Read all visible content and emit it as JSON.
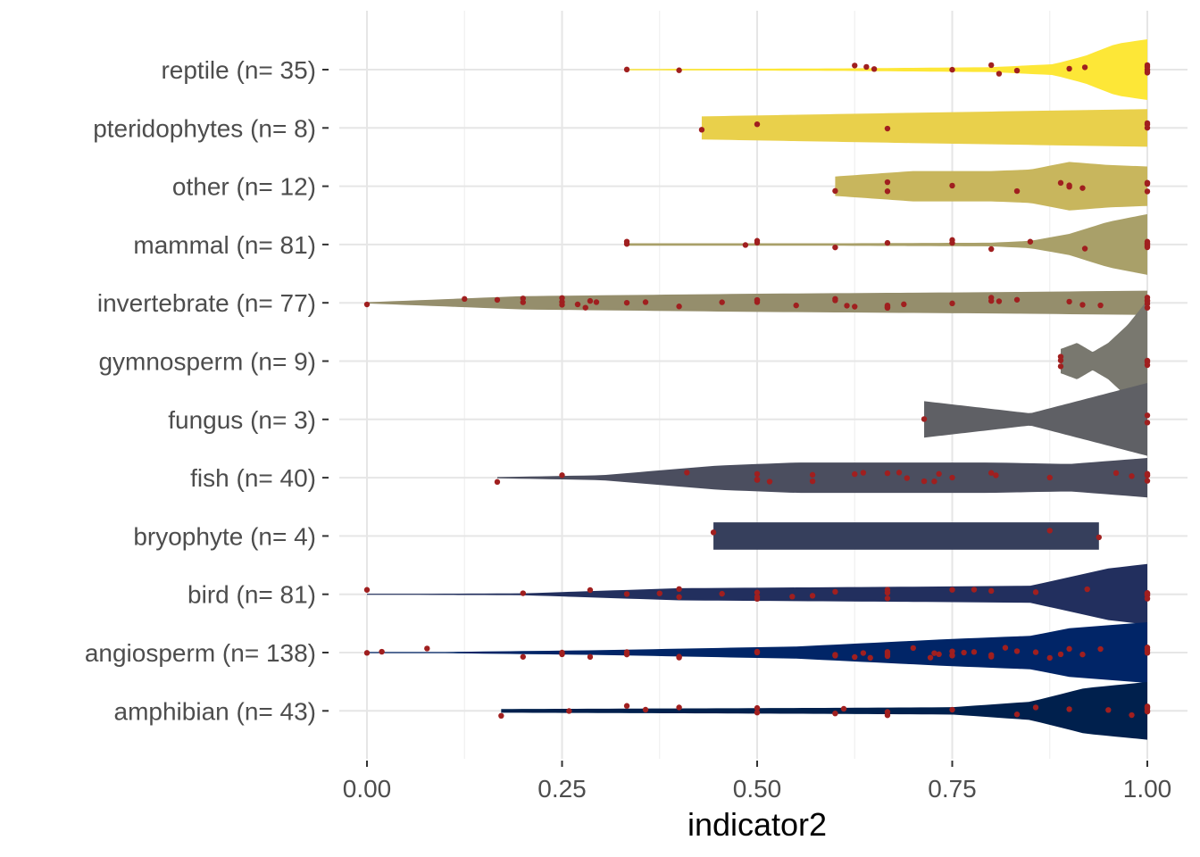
{
  "chart_data": {
    "type": "violin",
    "title": "",
    "xlabel": "indicator2",
    "ylabel": "",
    "xlim": [
      -0.07,
      1.04
    ],
    "x_ticks": [
      0.0,
      0.25,
      0.5,
      0.75,
      1.0
    ],
    "x_tick_labels": [
      "0.00",
      "0.25",
      "0.50",
      "0.75",
      "1.00"
    ],
    "grid": true,
    "legend": "none",
    "point_color": "#a01f1f",
    "categories": [
      {
        "label": "reptile (n= 35)",
        "color": "#fde737",
        "range": [
          0.333,
          1.0
        ],
        "profile": [
          [
            0.333,
            0.02
          ],
          [
            0.6,
            0.04
          ],
          [
            0.8,
            0.08
          ],
          [
            0.88,
            0.18
          ],
          [
            0.92,
            0.45
          ],
          [
            0.96,
            0.85
          ],
          [
            1.0,
            1.0
          ]
        ],
        "points": [
          0.333,
          0.4,
          0.625,
          0.64,
          0.65,
          0.75,
          0.8,
          0.81,
          0.833,
          0.9,
          0.92,
          1.0,
          1.0,
          1.0,
          1.0,
          1.0
        ]
      },
      {
        "label": "pteridophytes (n= 8)",
        "color": "#e9d04b",
        "range": [
          0.429,
          1.0
        ],
        "profile": [
          [
            0.429,
            0.38
          ],
          [
            0.7,
            0.5
          ],
          [
            1.0,
            0.62
          ]
        ],
        "points": [
          0.429,
          0.5,
          0.667,
          1.0,
          1.0,
          1.0
        ]
      },
      {
        "label": "other (n= 12)",
        "color": "#c8b65d",
        "range": [
          0.6,
          1.0
        ],
        "profile": [
          [
            0.6,
            0.32
          ],
          [
            0.7,
            0.5
          ],
          [
            0.8,
            0.5
          ],
          [
            0.85,
            0.55
          ],
          [
            0.9,
            0.8
          ],
          [
            0.95,
            0.7
          ],
          [
            1.0,
            0.65
          ]
        ],
        "points": [
          0.6,
          0.667,
          0.667,
          0.75,
          0.833,
          0.889,
          0.9,
          0.9,
          0.917,
          1.0,
          1.0,
          1.0
        ]
      },
      {
        "label": "mammal (n= 81)",
        "color": "#a9a069",
        "range": [
          0.333,
          1.0
        ],
        "profile": [
          [
            0.333,
            0.04
          ],
          [
            0.6,
            0.04
          ],
          [
            0.8,
            0.06
          ],
          [
            0.85,
            0.12
          ],
          [
            0.9,
            0.35
          ],
          [
            0.95,
            0.75
          ],
          [
            1.0,
            1.0
          ]
        ],
        "points": [
          0.333,
          0.333,
          0.485,
          0.5,
          0.5,
          0.6,
          0.667,
          0.75,
          0.75,
          0.8,
          0.85,
          0.92,
          1.0,
          1.0,
          1.0,
          1.0,
          1.0
        ]
      },
      {
        "label": "invertebrate (n= 77)",
        "color": "#958e6c",
        "range": [
          0.0,
          1.0
        ],
        "profile": [
          [
            0.0,
            0.02
          ],
          [
            0.2,
            0.22
          ],
          [
            0.5,
            0.3
          ],
          [
            0.8,
            0.35
          ],
          [
            1.0,
            0.4
          ]
        ],
        "points": [
          0.0,
          0.125,
          0.167,
          0.2,
          0.2,
          0.25,
          0.25,
          0.25,
          0.27,
          0.28,
          0.286,
          0.294,
          0.333,
          0.357,
          0.4,
          0.455,
          0.5,
          0.5,
          0.5,
          0.55,
          0.6,
          0.6,
          0.615,
          0.625,
          0.667,
          0.667,
          0.667,
          0.667,
          0.688,
          0.75,
          0.8,
          0.8,
          0.81,
          0.833,
          0.9,
          0.917,
          0.94,
          1.0,
          1.0,
          1.0,
          1.0,
          1.0
        ]
      },
      {
        "label": "gymnosperm (n= 9)",
        "color": "#79786f",
        "range": [
          0.889,
          1.0
        ],
        "profile": [
          [
            0.889,
            0.4
          ],
          [
            0.91,
            0.6
          ],
          [
            0.93,
            0.3
          ],
          [
            0.95,
            0.6
          ],
          [
            0.975,
            1.2
          ],
          [
            1.0,
            2.0
          ]
        ],
        "points": [
          0.889,
          0.889,
          0.889,
          1.0,
          1.0,
          1.0
        ]
      },
      {
        "label": "fungus (n= 3)",
        "color": "#5f6065",
        "range": [
          0.714,
          1.0
        ],
        "profile": [
          [
            0.714,
            0.6
          ],
          [
            0.85,
            0.2
          ],
          [
            1.0,
            1.2
          ]
        ],
        "points": [
          0.714,
          1.0,
          1.0
        ]
      },
      {
        "label": "fish (n= 40)",
        "color": "#4b4e5f",
        "range": [
          0.167,
          1.0
        ],
        "profile": [
          [
            0.167,
            0.02
          ],
          [
            0.3,
            0.08
          ],
          [
            0.45,
            0.4
          ],
          [
            0.55,
            0.5
          ],
          [
            0.8,
            0.5
          ],
          [
            0.9,
            0.45
          ],
          [
            1.0,
            0.65
          ]
        ],
        "points": [
          0.167,
          0.25,
          0.41,
          0.5,
          0.5,
          0.5,
          0.5,
          0.516,
          0.571,
          0.571,
          0.625,
          0.636,
          0.667,
          0.682,
          0.692,
          0.714,
          0.727,
          0.733,
          0.75,
          0.8,
          0.806,
          0.875,
          0.96,
          0.98,
          1.0,
          1.0,
          1.0,
          1.0
        ]
      },
      {
        "label": "bryophyte (n= 4)",
        "color": "#363f5c",
        "range": [
          0.444,
          0.938
        ],
        "profile": [
          [
            0.444,
            0.45
          ],
          [
            0.938,
            0.45
          ]
        ],
        "points": [
          0.444,
          0.875,
          0.938
        ]
      },
      {
        "label": "bird (n= 81)",
        "color": "#222f5e",
        "range": [
          0.0,
          1.0
        ],
        "profile": [
          [
            0.0,
            0.01
          ],
          [
            0.2,
            0.03
          ],
          [
            0.4,
            0.2
          ],
          [
            0.7,
            0.25
          ],
          [
            0.85,
            0.28
          ],
          [
            0.95,
            0.85
          ],
          [
            1.0,
            1.0
          ]
        ],
        "points": [
          0.0,
          0.2,
          0.286,
          0.333,
          0.375,
          0.4,
          0.4,
          0.455,
          0.5,
          0.5,
          0.5,
          0.545,
          0.571,
          0.6,
          0.667,
          0.667,
          0.667,
          0.75,
          0.778,
          0.8,
          0.857,
          0.923,
          1.0,
          1.0,
          1.0,
          1.0,
          1.0
        ]
      },
      {
        "label": "angiosperm (n= 138)",
        "color": "#012567",
        "range": [
          0.0,
          1.0
        ],
        "profile": [
          [
            0.0,
            0.01
          ],
          [
            0.1,
            0.02
          ],
          [
            0.3,
            0.08
          ],
          [
            0.55,
            0.2
          ],
          [
            0.75,
            0.45
          ],
          [
            0.85,
            0.55
          ],
          [
            0.9,
            0.8
          ],
          [
            1.0,
            1.0
          ]
        ],
        "points": [
          0.0,
          0.019,
          0.077,
          0.2,
          0.25,
          0.25,
          0.286,
          0.333,
          0.333,
          0.4,
          0.4,
          0.5,
          0.5,
          0.6,
          0.6,
          0.625,
          0.636,
          0.645,
          0.667,
          0.667,
          0.667,
          0.7,
          0.722,
          0.727,
          0.733,
          0.75,
          0.75,
          0.75,
          0.765,
          0.778,
          0.8,
          0.8,
          0.818,
          0.833,
          0.857,
          0.875,
          0.889,
          0.9,
          0.917,
          0.94,
          1.0,
          1.0,
          1.0,
          1.0
        ]
      },
      {
        "label": "amphibian (n= 43)",
        "color": "#00204d",
        "range": [
          0.172,
          1.0
        ],
        "profile": [
          [
            0.172,
            0.06
          ],
          [
            0.4,
            0.08
          ],
          [
            0.6,
            0.1
          ],
          [
            0.75,
            0.12
          ],
          [
            0.85,
            0.3
          ],
          [
            0.92,
            0.75
          ],
          [
            1.0,
            0.95
          ]
        ],
        "points": [
          0.172,
          0.259,
          0.333,
          0.357,
          0.4,
          0.5,
          0.5,
          0.6,
          0.611,
          0.667,
          0.667,
          0.75,
          0.833,
          0.857,
          0.9,
          0.95,
          0.98,
          1.0,
          1.0,
          1.0,
          1.0,
          1.0
        ]
      }
    ]
  }
}
